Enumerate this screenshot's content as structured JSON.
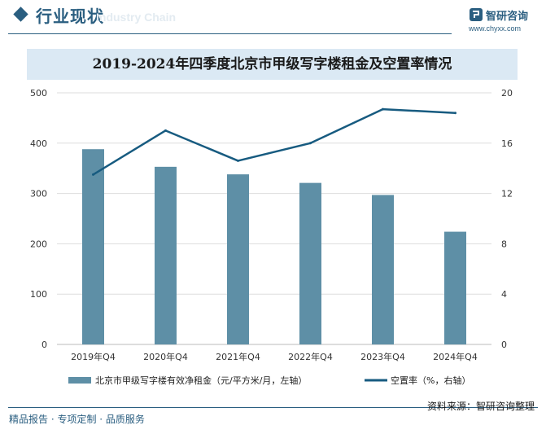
{
  "header": {
    "title": "行业现状",
    "subtitle": "Industry Chain",
    "logo_name": "智研咨询",
    "logo_url": "www.chyxx.com"
  },
  "chart_data": {
    "type": "bar+line",
    "title": "2019-2024年四季度北京市甲级写字楼租金及空置率情况",
    "categories": [
      "2019年Q4",
      "2020年Q4",
      "2021年Q4",
      "2022年Q4",
      "2023年Q4",
      "2024年Q4"
    ],
    "series": [
      {
        "name": "北京市甲级写字楼有效净租金（元/平方米/月，左轴）",
        "type": "bar",
        "axis": "left",
        "values": [
          388,
          353,
          338,
          321,
          297,
          224
        ],
        "color": "#5e8fa6"
      },
      {
        "name": "空置率（%，右轴）",
        "type": "line",
        "axis": "right",
        "values": [
          13.5,
          17.0,
          14.6,
          16.0,
          18.7,
          18.4
        ],
        "color": "#175b80"
      }
    ],
    "left_axis": {
      "ylim": [
        0,
        500
      ],
      "ticks": [
        "0",
        "100",
        "200",
        "300",
        "400",
        "500"
      ]
    },
    "right_axis": {
      "ylim": [
        0,
        20
      ],
      "ticks": [
        "0",
        "4",
        "8",
        "12",
        "16",
        "20"
      ]
    },
    "grid": true,
    "legend_position": "bottom"
  },
  "footer": {
    "left": "精品报告 · 专项定制 · 品质服务",
    "source": "资料来源：智研咨询整理"
  }
}
